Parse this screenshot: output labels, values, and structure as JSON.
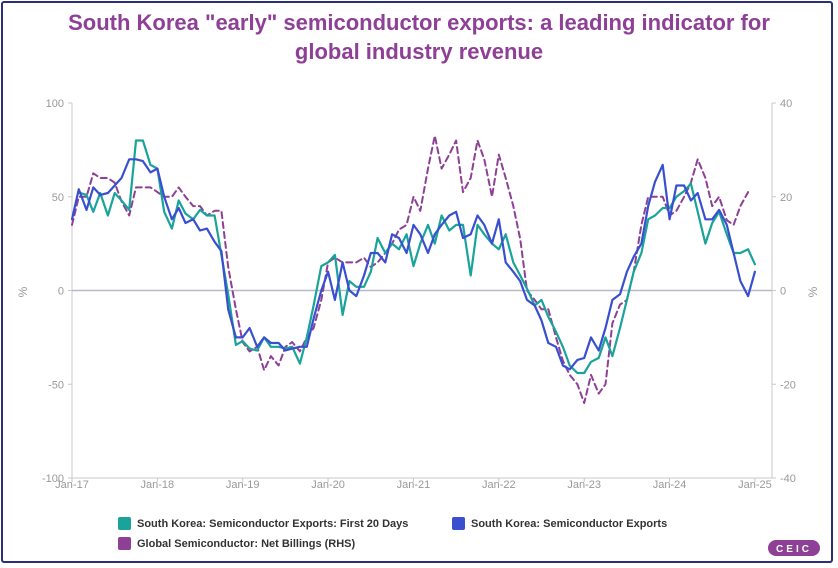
{
  "title_line1": "South Korea \"early\" semiconductor exports: a leading indicator for",
  "title_line2": "global industry revenue",
  "logo_text": "CEIC",
  "legend": {
    "s1": "South Korea: Semiconductor Exports: First 20 Days",
    "s2": "South Korea: Semiconductor Exports",
    "s3": "Global Semiconductor: Net Billings (RHS)"
  },
  "colors": {
    "teal": "#1aa39a",
    "blue": "#3a4fcf",
    "purple": "#8e3f96",
    "title": "#8e3f96",
    "frame": "#2b2e7a"
  },
  "chart_data": {
    "type": "line",
    "y_left_label": "%",
    "y_right_label": "%",
    "y_left_range": [
      -100,
      100
    ],
    "y_right_range": [
      -40,
      40
    ],
    "y_left_ticks": [
      "100",
      "50",
      "0",
      "-50",
      "-100"
    ],
    "y_left_tick_values": [
      100,
      50,
      0,
      -50,
      -100
    ],
    "y_right_ticks": [
      "40",
      "20",
      "0",
      "-20",
      "-40"
    ],
    "y_right_tick_values": [
      40,
      20,
      0,
      -20,
      -40
    ],
    "x_ticks": [
      "Jan-17",
      "Jan-18",
      "Jan-19",
      "Jan-20",
      "Jan-21",
      "Jan-22",
      "Jan-23",
      "Jan-24",
      "Jan-25"
    ],
    "x_tick_values": [
      2017,
      2018,
      2019,
      2020,
      2021,
      2022,
      2023,
      2024,
      2025
    ],
    "x_range": [
      2017,
      2025.2
    ],
    "grid": false,
    "series": [
      {
        "name": "South Korea: Semiconductor Exports: First 20 Days",
        "axis": "left",
        "color": "#1aa39a",
        "style": "solid",
        "points": [
          [
            2017.1,
            52
          ],
          [
            2017.17,
            51
          ],
          [
            2017.25,
            42
          ],
          [
            2017.33,
            52
          ],
          [
            2017.42,
            40
          ],
          [
            2017.5,
            52
          ],
          [
            2017.58,
            48
          ],
          [
            2017.67,
            43
          ],
          [
            2017.75,
            80
          ],
          [
            2017.83,
            80
          ],
          [
            2017.92,
            67
          ],
          [
            2018.0,
            65
          ],
          [
            2018.08,
            42
          ],
          [
            2018.17,
            33
          ],
          [
            2018.25,
            48
          ],
          [
            2018.33,
            41
          ],
          [
            2018.42,
            38
          ],
          [
            2018.5,
            43
          ],
          [
            2018.58,
            40
          ],
          [
            2018.67,
            40
          ],
          [
            2018.75,
            19
          ],
          [
            2018.83,
            -2
          ],
          [
            2018.92,
            -29
          ],
          [
            2019.0,
            -27
          ],
          [
            2019.08,
            -31
          ],
          [
            2019.17,
            -32
          ],
          [
            2019.25,
            -25
          ],
          [
            2019.33,
            -30
          ],
          [
            2019.42,
            -30
          ],
          [
            2019.5,
            -31
          ],
          [
            2019.58,
            -30
          ],
          [
            2019.67,
            -39
          ],
          [
            2019.75,
            -25
          ],
          [
            2019.83,
            -8
          ],
          [
            2019.92,
            13
          ],
          [
            2020.0,
            15
          ],
          [
            2020.08,
            19
          ],
          [
            2020.17,
            -13
          ],
          [
            2020.25,
            5
          ],
          [
            2020.33,
            2
          ],
          [
            2020.42,
            2
          ],
          [
            2020.5,
            10
          ],
          [
            2020.58,
            28
          ],
          [
            2020.67,
            20
          ],
          [
            2020.75,
            25
          ],
          [
            2020.83,
            22
          ],
          [
            2020.92,
            30
          ],
          [
            2021.0,
            13
          ],
          [
            2021.08,
            25
          ],
          [
            2021.17,
            35
          ],
          [
            2021.25,
            25
          ],
          [
            2021.33,
            40
          ],
          [
            2021.42,
            32
          ],
          [
            2021.5,
            35
          ],
          [
            2021.58,
            35
          ],
          [
            2021.67,
            8
          ],
          [
            2021.75,
            35
          ],
          [
            2021.83,
            30
          ],
          [
            2021.92,
            25
          ],
          [
            2022.0,
            22
          ],
          [
            2022.08,
            30
          ],
          [
            2022.17,
            15
          ],
          [
            2022.25,
            8
          ],
          [
            2022.33,
            1
          ],
          [
            2022.42,
            -8
          ],
          [
            2022.5,
            -5
          ],
          [
            2022.58,
            -14
          ],
          [
            2022.67,
            -22
          ],
          [
            2022.75,
            -30
          ],
          [
            2022.83,
            -40
          ],
          [
            2022.92,
            -44
          ],
          [
            2023.0,
            -44
          ],
          [
            2023.08,
            -38
          ],
          [
            2023.17,
            -36
          ],
          [
            2023.25,
            -25
          ],
          [
            2023.33,
            -35
          ],
          [
            2023.42,
            -20
          ],
          [
            2023.5,
            -5
          ],
          [
            2023.58,
            10
          ],
          [
            2023.67,
            20
          ],
          [
            2023.75,
            38
          ],
          [
            2023.83,
            40
          ],
          [
            2023.92,
            44
          ],
          [
            2024.0,
            44
          ],
          [
            2024.08,
            50
          ],
          [
            2024.17,
            53
          ],
          [
            2024.25,
            57
          ],
          [
            2024.33,
            42
          ],
          [
            2024.42,
            25
          ],
          [
            2024.5,
            36
          ],
          [
            2024.58,
            42
          ],
          [
            2024.67,
            30
          ],
          [
            2024.75,
            20
          ],
          [
            2024.83,
            20
          ],
          [
            2024.92,
            22
          ],
          [
            2025.0,
            14
          ]
        ]
      },
      {
        "name": "South Korea: Semiconductor Exports",
        "axis": "left",
        "color": "#3a4fcf",
        "style": "solid",
        "points": [
          [
            2017.0,
            38
          ],
          [
            2017.08,
            54
          ],
          [
            2017.17,
            43
          ],
          [
            2017.25,
            55
          ],
          [
            2017.33,
            51
          ],
          [
            2017.42,
            52
          ],
          [
            2017.5,
            56
          ],
          [
            2017.58,
            60
          ],
          [
            2017.67,
            70
          ],
          [
            2017.75,
            70
          ],
          [
            2017.83,
            69
          ],
          [
            2017.92,
            63
          ],
          [
            2018.0,
            65
          ],
          [
            2018.08,
            50
          ],
          [
            2018.17,
            38
          ],
          [
            2018.25,
            44
          ],
          [
            2018.33,
            36
          ],
          [
            2018.42,
            38
          ],
          [
            2018.5,
            32
          ],
          [
            2018.58,
            33
          ],
          [
            2018.67,
            26
          ],
          [
            2018.75,
            21
          ],
          [
            2018.83,
            -10
          ],
          [
            2018.92,
            -25
          ],
          [
            2019.0,
            -25
          ],
          [
            2019.08,
            -20
          ],
          [
            2019.17,
            -30
          ],
          [
            2019.25,
            -25
          ],
          [
            2019.33,
            -28
          ],
          [
            2019.42,
            -28
          ],
          [
            2019.5,
            -32
          ],
          [
            2019.58,
            -31
          ],
          [
            2019.67,
            -30
          ],
          [
            2019.75,
            -30
          ],
          [
            2019.83,
            -15
          ],
          [
            2019.92,
            0
          ],
          [
            2020.0,
            10
          ],
          [
            2020.08,
            -5
          ],
          [
            2020.17,
            15
          ],
          [
            2020.25,
            0
          ],
          [
            2020.33,
            -3
          ],
          [
            2020.42,
            8
          ],
          [
            2020.5,
            20
          ],
          [
            2020.58,
            20
          ],
          [
            2020.67,
            15
          ],
          [
            2020.75,
            30
          ],
          [
            2020.83,
            28
          ],
          [
            2020.92,
            20
          ],
          [
            2021.0,
            35
          ],
          [
            2021.08,
            30
          ],
          [
            2021.17,
            20
          ],
          [
            2021.25,
            30
          ],
          [
            2021.33,
            35
          ],
          [
            2021.42,
            40
          ],
          [
            2021.5,
            42
          ],
          [
            2021.58,
            28
          ],
          [
            2021.67,
            30
          ],
          [
            2021.75,
            40
          ],
          [
            2021.83,
            35
          ],
          [
            2021.92,
            25
          ],
          [
            2022.0,
            38
          ],
          [
            2022.08,
            15
          ],
          [
            2022.17,
            10
          ],
          [
            2022.25,
            5
          ],
          [
            2022.33,
            -5
          ],
          [
            2022.42,
            -8
          ],
          [
            2022.5,
            -16
          ],
          [
            2022.58,
            -28
          ],
          [
            2022.67,
            -30
          ],
          [
            2022.75,
            -40
          ],
          [
            2022.83,
            -42
          ],
          [
            2022.92,
            -37
          ],
          [
            2023.0,
            -36
          ],
          [
            2023.08,
            -25
          ],
          [
            2023.17,
            -32
          ],
          [
            2023.25,
            -20
          ],
          [
            2023.33,
            -5
          ],
          [
            2023.42,
            -2
          ],
          [
            2023.5,
            10
          ],
          [
            2023.58,
            18
          ],
          [
            2023.67,
            25
          ],
          [
            2023.75,
            45
          ],
          [
            2023.83,
            58
          ],
          [
            2023.92,
            67
          ],
          [
            2024.0,
            38
          ],
          [
            2024.08,
            56
          ],
          [
            2024.17,
            56
          ],
          [
            2024.25,
            48
          ],
          [
            2024.33,
            52
          ],
          [
            2024.42,
            38
          ],
          [
            2024.5,
            38
          ],
          [
            2024.58,
            43
          ],
          [
            2024.67,
            35
          ],
          [
            2024.75,
            20
          ],
          [
            2024.83,
            5
          ],
          [
            2024.92,
            -3
          ],
          [
            2025.0,
            10
          ]
        ]
      },
      {
        "name": "Global Semiconductor: Net Billings (RHS)",
        "axis": "right",
        "color": "#8e3f96",
        "style": "dashed",
        "points": [
          [
            2017.0,
            14
          ],
          [
            2017.08,
            20
          ],
          [
            2017.17,
            20
          ],
          [
            2017.25,
            25
          ],
          [
            2017.33,
            24
          ],
          [
            2017.42,
            24
          ],
          [
            2017.5,
            23
          ],
          [
            2017.58,
            19
          ],
          [
            2017.67,
            16
          ],
          [
            2017.75,
            22
          ],
          [
            2017.83,
            22
          ],
          [
            2017.92,
            22
          ],
          [
            2018.0,
            21
          ],
          [
            2018.08,
            20
          ],
          [
            2018.17,
            20
          ],
          [
            2018.25,
            22
          ],
          [
            2018.33,
            20
          ],
          [
            2018.42,
            18
          ],
          [
            2018.5,
            18
          ],
          [
            2018.58,
            16
          ],
          [
            2018.67,
            17
          ],
          [
            2018.75,
            17
          ],
          [
            2018.83,
            5
          ],
          [
            2018.92,
            -4
          ],
          [
            2019.0,
            -11
          ],
          [
            2019.08,
            -13
          ],
          [
            2019.17,
            -12
          ],
          [
            2019.25,
            -17
          ],
          [
            2019.33,
            -14
          ],
          [
            2019.42,
            -16
          ],
          [
            2019.5,
            -12
          ],
          [
            2019.58,
            -11
          ],
          [
            2019.67,
            -13
          ],
          [
            2019.75,
            -10
          ],
          [
            2019.83,
            -8
          ],
          [
            2019.92,
            -2
          ],
          [
            2020.0,
            6
          ],
          [
            2020.08,
            7
          ],
          [
            2020.17,
            6
          ],
          [
            2020.25,
            6
          ],
          [
            2020.33,
            6
          ],
          [
            2020.42,
            7
          ],
          [
            2020.5,
            5
          ],
          [
            2020.58,
            6
          ],
          [
            2020.67,
            8
          ],
          [
            2020.75,
            10
          ],
          [
            2020.83,
            13
          ],
          [
            2020.92,
            14
          ],
          [
            2021.0,
            20
          ],
          [
            2021.08,
            17
          ],
          [
            2021.17,
            26
          ],
          [
            2021.25,
            33
          ],
          [
            2021.33,
            26
          ],
          [
            2021.42,
            29
          ],
          [
            2021.5,
            32
          ],
          [
            2021.58,
            21
          ],
          [
            2021.67,
            24
          ],
          [
            2021.75,
            32
          ],
          [
            2021.83,
            28
          ],
          [
            2021.92,
            20
          ],
          [
            2022.0,
            29
          ],
          [
            2022.08,
            24
          ],
          [
            2022.17,
            18
          ],
          [
            2022.25,
            11
          ],
          [
            2022.33,
            0
          ],
          [
            2022.42,
            -2
          ],
          [
            2022.5,
            -4
          ],
          [
            2022.58,
            -4
          ],
          [
            2022.67,
            -10
          ],
          [
            2022.75,
            -15
          ],
          [
            2022.83,
            -18
          ],
          [
            2022.92,
            -20
          ],
          [
            2023.0,
            -24
          ],
          [
            2023.08,
            -18
          ],
          [
            2023.17,
            -22
          ],
          [
            2023.25,
            -20
          ],
          [
            2023.33,
            -7
          ],
          [
            2023.42,
            -3
          ],
          [
            2023.5,
            -2
          ],
          [
            2023.58,
            4
          ],
          [
            2023.67,
            14
          ],
          [
            2023.75,
            20
          ],
          [
            2023.83,
            20
          ],
          [
            2023.92,
            20
          ],
          [
            2024.0,
            16
          ],
          [
            2024.08,
            17
          ],
          [
            2024.17,
            20
          ],
          [
            2024.25,
            23
          ],
          [
            2024.33,
            28
          ],
          [
            2024.42,
            24
          ],
          [
            2024.5,
            18
          ],
          [
            2024.58,
            20
          ],
          [
            2024.67,
            15
          ],
          [
            2024.75,
            14
          ],
          [
            2024.83,
            18
          ],
          [
            2024.92,
            21
          ]
        ]
      }
    ]
  }
}
